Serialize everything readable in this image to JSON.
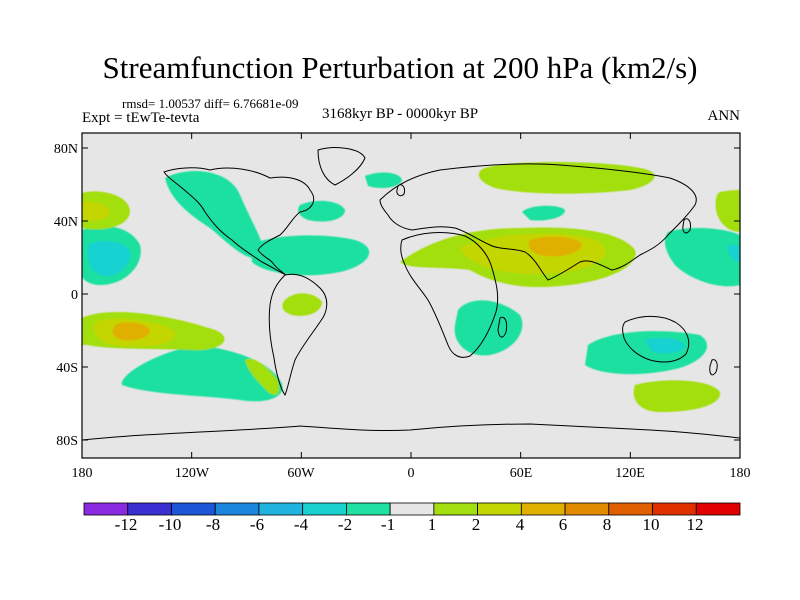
{
  "title": "Streamfunction Perturbation at 200 hPa (km2/s)",
  "stats": "rmsd= 1.00537 diff= 6.76681e-09",
  "experiment": "Expt = tEwTe-tevta",
  "period": "3168kyr BP - 0000kyr BP",
  "season": "ANN",
  "lat_ticks": [
    "80N",
    "40N",
    "0",
    "40S",
    "80S"
  ],
  "lon_ticks": [
    "180",
    "120W",
    "60W",
    "0",
    "60E",
    "120E",
    "180"
  ],
  "colorbar": {
    "labels": [
      "-12",
      "-10",
      "-8",
      "-6",
      "-4",
      "-2",
      "-1",
      "1",
      "2",
      "4",
      "6",
      "8",
      "10",
      "12"
    ],
    "colors": [
      "#8a2be2",
      "#3a2fd0",
      "#1d56d6",
      "#1b86de",
      "#21b4e0",
      "#19d2d0",
      "#1ee0a0",
      "#e6e6e6",
      "#a3de10",
      "#c4d600",
      "#e0b000",
      "#e08a00",
      "#e06000",
      "#e03000",
      "#e00000"
    ]
  },
  "field_colors": {
    "background": "#e6e6e6",
    "neg1": "#1ee0a0",
    "neg2": "#19d2d0",
    "pos1": "#a3de10",
    "pos2": "#c4d600",
    "pos3": "#e0b000"
  }
}
